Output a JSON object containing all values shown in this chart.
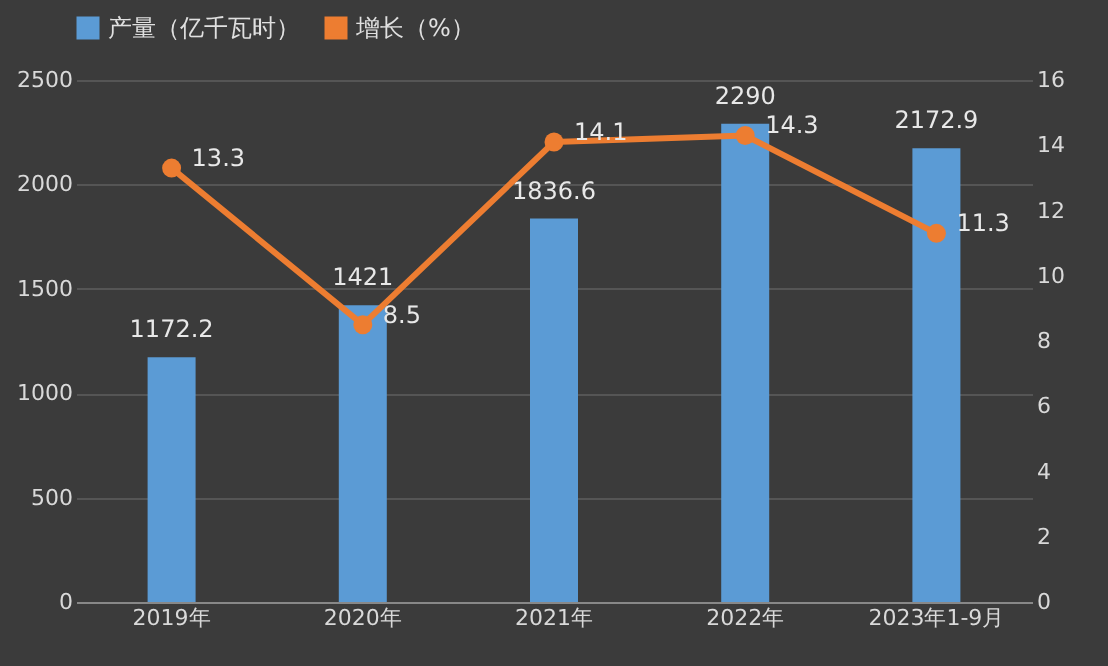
{
  "chart_data": {
    "type": "bar",
    "categories": [
      "2019年",
      "2020年",
      "2021年",
      "2022年",
      "2023年1-9月"
    ],
    "series": [
      {
        "name": "产量（亿千瓦时）",
        "color": "#5b9bd5",
        "values": [
          1172.2,
          1421,
          1836.6,
          2290,
          2172.9
        ]
      },
      {
        "name": "增长（%）",
        "type": "line",
        "axis": "y2",
        "color": "#ed7d31",
        "values": [
          13.3,
          8.5,
          14.1,
          14.3,
          11.3
        ]
      }
    ],
    "ylim": [
      0,
      2500
    ],
    "yticks": [
      0,
      500,
      1000,
      1500,
      2000,
      2500
    ],
    "y2lim": [
      0,
      16
    ],
    "y2ticks": [
      0,
      2,
      4,
      6,
      8,
      10,
      12,
      14,
      16
    ],
    "grid": "y",
    "legend": "top",
    "marker": "circle",
    "line_style": "solid",
    "data_labels": true
  }
}
